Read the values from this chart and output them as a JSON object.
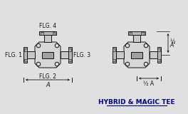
{
  "bg_color": "#e0e0e0",
  "line_color": "#111111",
  "title": "HYBRID & MAGIC TEE",
  "title_color": "#000080",
  "flg_labels": [
    "FLG. 1",
    "FLG. 2",
    "FLG. 3",
    "FLG. 4"
  ],
  "body_fill": "#d8d8d8",
  "arm_fill": "#c8c8c8",
  "flange_fill": "#b8b8b8",
  "inner_fill": "#a0a0a0"
}
